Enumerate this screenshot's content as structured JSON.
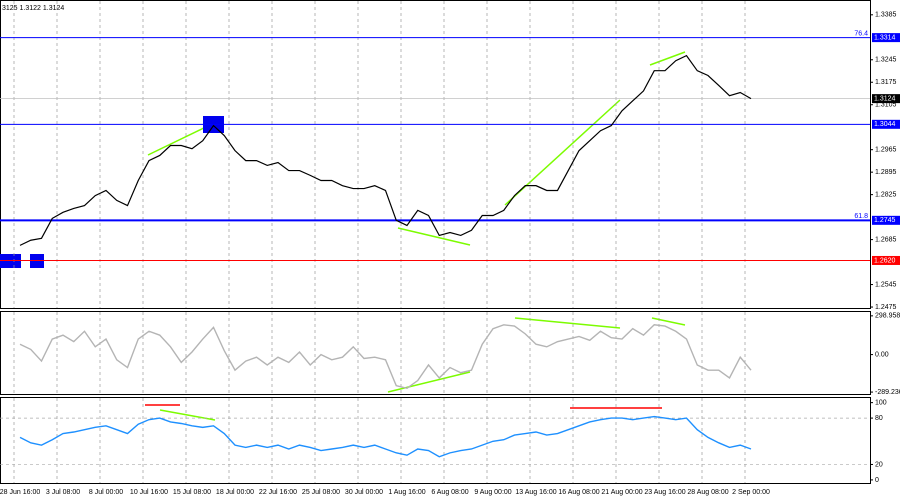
{
  "chart_data": [
    {
      "type": "line",
      "info": "3125 1.3122 1.3124",
      "color": "#000000",
      "categories": [
        "28 Jun 16:00",
        null,
        null,
        null,
        "3 Jul 08:00",
        null,
        null,
        null,
        "8 Jul 00:00",
        null,
        null,
        null,
        "10 Jul 16:00",
        null,
        null,
        null,
        "15 Jul 08:00",
        null,
        null,
        null,
        "18 Jul 00:00",
        null,
        null,
        null,
        "22 Jul 16:00",
        null,
        null,
        null,
        "25 Jul 08:00",
        null,
        null,
        null,
        "30 Jul 00:00",
        null,
        null,
        null,
        "1 Aug 16:00",
        null,
        null,
        null,
        "6 Aug 08:00",
        null,
        null,
        null,
        "9 Aug 00:00",
        null,
        null,
        null,
        "13 Aug 16:00",
        null,
        null,
        null,
        "16 Aug 08:00",
        null,
        null,
        null,
        "21 Aug 00:00",
        null,
        null,
        null,
        "23 Aug 16:00",
        null,
        null,
        null,
        "28 Aug 08:00",
        null,
        null,
        null,
        "2 Sep 00:00"
      ],
      "values": [
        1.2667,
        1.2683,
        1.2689,
        1.2751,
        1.277,
        1.2782,
        1.2791,
        1.2822,
        1.2838,
        1.2807,
        1.2791,
        1.2869,
        1.2931,
        1.2947,
        1.2978,
        1.2978,
        1.2968,
        1.2993,
        1.304,
        1.3009,
        1.2962,
        1.2931,
        1.2931,
        1.2916,
        1.2925,
        1.29,
        1.29,
        1.2885,
        1.2869,
        1.2869,
        1.2853,
        1.2844,
        1.2844,
        1.2853,
        1.2838,
        1.2745,
        1.2729,
        1.2776,
        1.276,
        1.2698,
        1.2707,
        1.2698,
        1.2714,
        1.276,
        1.276,
        1.2776,
        1.2822,
        1.2853,
        1.2853,
        1.2838,
        1.2838,
        1.29,
        1.2962,
        1.2993,
        1.3024,
        1.304,
        1.3086,
        1.3117,
        1.3148,
        1.3211,
        1.3211,
        1.3242,
        1.3258,
        1.3211,
        1.3196,
        1.3165,
        1.3133,
        1.3143,
        1.3124
      ],
      "ylim": [
        1.2472,
        1.3428
      ],
      "yticks": [
        1.3385,
        1.3245,
        1.3175,
        1.3105,
        1.2965,
        1.2895,
        1.2825,
        1.2685,
        1.2545,
        1.2475
      ],
      "grid": true,
      "levels": [
        {
          "value": 1.3314,
          "tag": "76.4",
          "color": "#0000ff"
        },
        {
          "value": 1.3044,
          "color": "#0000ff"
        },
        {
          "value": 1.2745,
          "tag": "61.8",
          "color": "#0000ff"
        },
        {
          "value": 1.262,
          "label": "1.2620",
          "color": "#ff0000"
        }
      ],
      "last": 1.3124
    },
    {
      "type": "line",
      "color": "#b4b4b4",
      "values": [
        80,
        40,
        -50,
        120,
        150,
        100,
        180,
        60,
        120,
        -40,
        -100,
        120,
        180,
        150,
        60,
        -60,
        20,
        120,
        210,
        30,
        -120,
        -50,
        -20,
        -80,
        -20,
        -60,
        20,
        -80,
        0,
        -40,
        -20,
        60,
        -30,
        -20,
        -40,
        -240,
        -260,
        -200,
        -80,
        -180,
        -100,
        -140,
        -120,
        80,
        200,
        230,
        220,
        160,
        80,
        60,
        100,
        120,
        140,
        110,
        180,
        130,
        120,
        200,
        150,
        230,
        220,
        180,
        120,
        -80,
        -120,
        -120,
        -180,
        -20,
        -120
      ],
      "ylim": [
        -304.1,
        328.7
      ],
      "yticks": [
        298.9583,
        {
          "value": 0,
          "label": "0.00"
        },
        -289.236
      ]
    },
    {
      "type": "line",
      "color": "#1e90ff",
      "values": [
        55,
        48,
        45,
        52,
        60,
        62,
        65,
        68,
        70,
        65,
        60,
        72,
        78,
        80,
        75,
        73,
        70,
        68,
        70,
        60,
        45,
        42,
        45,
        42,
        45,
        40,
        45,
        42,
        38,
        40,
        42,
        45,
        42,
        45,
        40,
        35,
        32,
        40,
        38,
        30,
        35,
        38,
        40,
        45,
        50,
        52,
        58,
        60,
        62,
        58,
        60,
        65,
        70,
        75,
        78,
        80,
        80,
        78,
        80,
        82,
        80,
        78,
        80,
        65,
        55,
        48,
        42,
        45,
        40
      ],
      "ylim": [
        -4,
        106
      ],
      "yticks": [
        100,
        80,
        20,
        0
      ],
      "dashed": [
        80,
        20
      ]
    }
  ]
}
